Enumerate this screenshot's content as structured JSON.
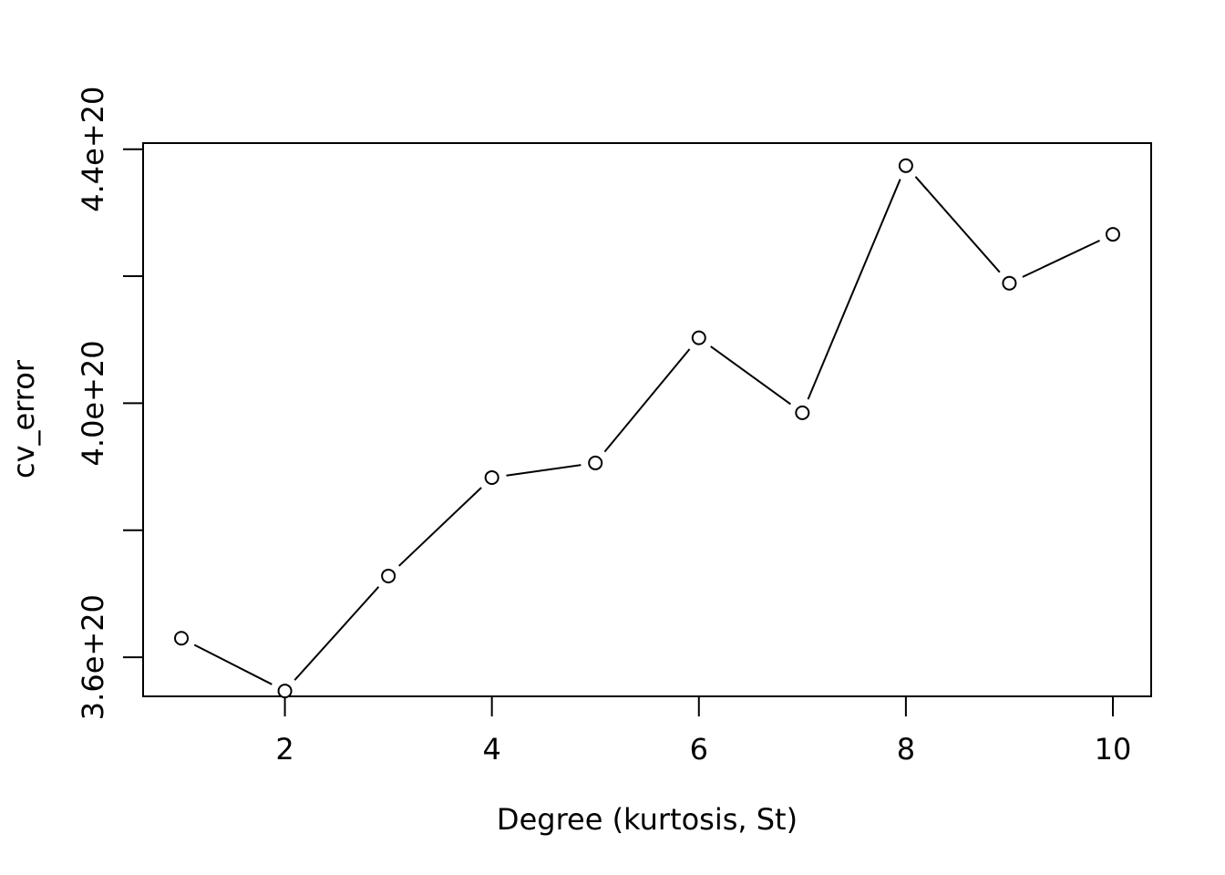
{
  "chart_data": {
    "type": "line",
    "title": "",
    "xlabel": "Degree (kurtosis, St)",
    "ylabel": "cv_error",
    "x": [
      1,
      2,
      3,
      4,
      5,
      6,
      7,
      8,
      9,
      10
    ],
    "series": [
      {
        "values": [
          3.63e+20,
          3.547e+20,
          3.728e+20,
          3.883e+20,
          3.906e+20,
          4.103e+20,
          3.985e+20,
          4.374e+20,
          4.189e+20,
          4.266e+20
        ]
      }
    ],
    "xlim": [
      0.63,
      10.37
    ],
    "ylim": [
      3.5385e+20,
      4.4096e+20
    ],
    "x_ticks": [
      2,
      4,
      6,
      8,
      10
    ],
    "x_tick_labels": [
      "2",
      "4",
      "6",
      "8",
      "10"
    ],
    "y_ticks": [
      3.6e+20,
      3.8e+20,
      4e+20,
      4.2e+20,
      4.4e+20
    ],
    "y_tick_labels": [
      "3.6e+20",
      "",
      "4.0e+20",
      "",
      "4.4e+20"
    ],
    "grid": false,
    "legend": "none",
    "marker": "open-circle",
    "colors": {
      "line": "#000000",
      "marker_fill": "#ffffff",
      "background": "#ffffff"
    }
  }
}
